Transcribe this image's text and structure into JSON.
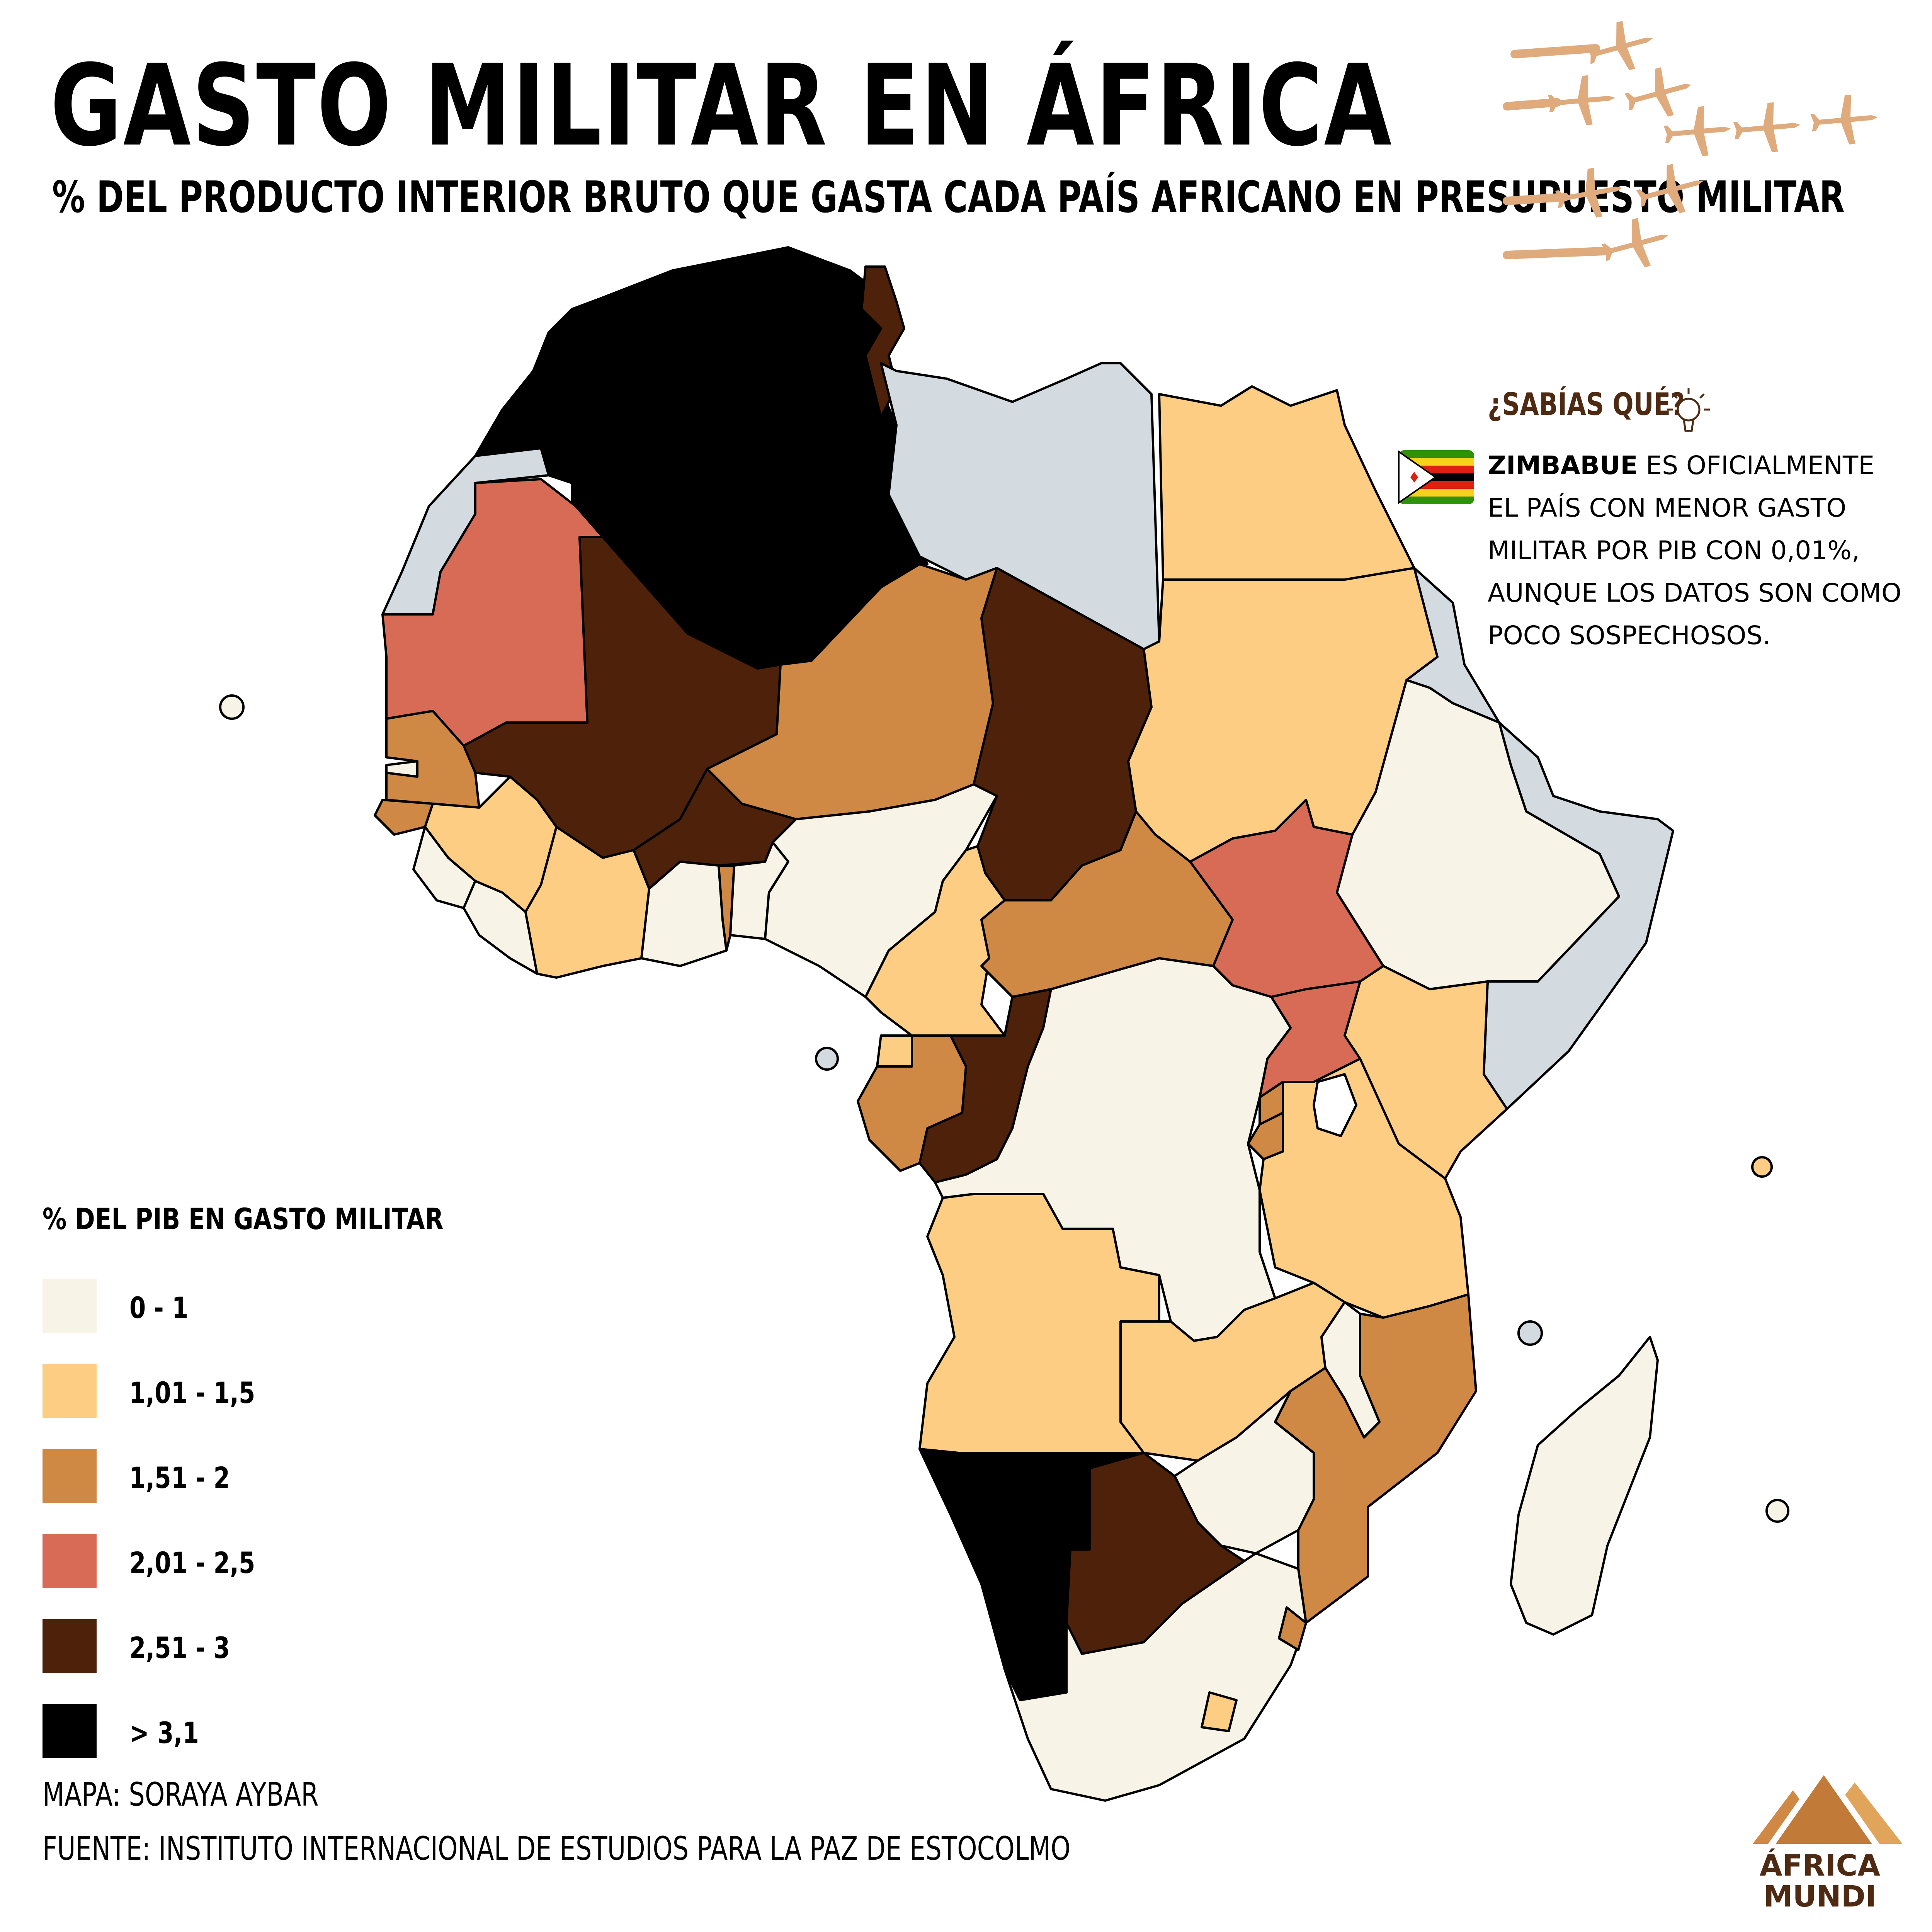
{
  "title": "GASTO MILITAR EN ÁFRICA",
  "subtitle": "% DEL PRODUCTO INTERIOR BRUTO QUE GASTA CADA PAÍS AFRICANO EN PRESUPUESTO MILITAR",
  "sidebar": {
    "heading": "¿SABÍAS QUÉ?",
    "fact_bold": "ZIMBABUE",
    "fact_text": "ES OFICIALMENTE EL PAÍS CON MENOR GASTO MILITAR POR PIB CON 0,01%, AUNQUE LOS DATOS SON COMO POCO SOSPECHOSOS."
  },
  "legend": {
    "title": "% DEL PIB EN GASTO MILITAR",
    "items": [
      {
        "label": "0 - 1",
        "color": "#f7f3e6"
      },
      {
        "label": "1,01 - 1,5",
        "color": "#fdcd84"
      },
      {
        "label": "1,51 - 2",
        "color": "#d08945"
      },
      {
        "label": "2,01 - 2,5",
        "color": "#d86b55"
      },
      {
        "label": "2,51 - 3",
        "color": "#4e210b"
      },
      {
        "label": "> 3,1",
        "color": "#000000"
      }
    ],
    "no_data_color": "#d3dbe0"
  },
  "credits": {
    "map": "MAPA: SORAYA AYBAR",
    "source": "FUENTE: INSTITUTO INTERNACIONAL DE ESTUDIOS PARA LA PAZ DE ESTOCOLMO"
  },
  "logo": {
    "line1": "ÁFRICA",
    "line2": "MUNDI",
    "colors": [
      "#d08945",
      "#e0a55a",
      "#c27a38"
    ]
  },
  "plane_color": "#dfab7d",
  "regions": [
    {
      "name": "Marruecos",
      "cls": 5
    },
    {
      "name": "Argelia",
      "cls": 5
    },
    {
      "name": "Túnez",
      "cls": 4
    },
    {
      "name": "Libia",
      "cls": 6
    },
    {
      "name": "Egipto",
      "cls": 1
    },
    {
      "name": "Sahara Occidental",
      "cls": 6
    },
    {
      "name": "Mauritania",
      "cls": 3
    },
    {
      "name": "Malí",
      "cls": 4
    },
    {
      "name": "Níger",
      "cls": 2
    },
    {
      "name": "Chad",
      "cls": 4
    },
    {
      "name": "Sudán",
      "cls": 1
    },
    {
      "name": "Eritrea",
      "cls": 6
    },
    {
      "name": "Senegal",
      "cls": 2
    },
    {
      "name": "Gambia",
      "cls": 0
    },
    {
      "name": "Guinea-Bisáu",
      "cls": 2
    },
    {
      "name": "Guinea",
      "cls": 1
    },
    {
      "name": "Sierra Leona",
      "cls": 0
    },
    {
      "name": "Liberia",
      "cls": 0
    },
    {
      "name": "Costa de Marfil",
      "cls": 1
    },
    {
      "name": "Burkina Faso",
      "cls": 4
    },
    {
      "name": "Ghana",
      "cls": 0
    },
    {
      "name": "Togo",
      "cls": 2
    },
    {
      "name": "Benín",
      "cls": 0
    },
    {
      "name": "Nigeria",
      "cls": 0
    },
    {
      "name": "Camerún",
      "cls": 1
    },
    {
      "name": "República Centroafricana",
      "cls": 2
    },
    {
      "name": "Sudán del Sur",
      "cls": 3
    },
    {
      "name": "Etiopía",
      "cls": 0
    },
    {
      "name": "Somalia",
      "cls": 6
    },
    {
      "name": "Kenia",
      "cls": 1
    },
    {
      "name": "Uganda",
      "cls": 3
    },
    {
      "name": "Guinea Ecuatorial",
      "cls": 1
    },
    {
      "name": "Gabón",
      "cls": 2
    },
    {
      "name": "República del Congo",
      "cls": 4
    },
    {
      "name": "República Democrática del Congo",
      "cls": 0
    },
    {
      "name": "Ruanda",
      "cls": 2
    },
    {
      "name": "Burundi",
      "cls": 2
    },
    {
      "name": "Tanzania",
      "cls": 1
    },
    {
      "name": "Angola",
      "cls": 1
    },
    {
      "name": "Zambia",
      "cls": 1
    },
    {
      "name": "Malaui",
      "cls": 0
    },
    {
      "name": "Mozambique",
      "cls": 2
    },
    {
      "name": "Zimbabue",
      "cls": 0
    },
    {
      "name": "Namibia",
      "cls": 5
    },
    {
      "name": "Botsuana",
      "cls": 4
    },
    {
      "name": "Sudáfrica",
      "cls": 0
    },
    {
      "name": "Esuatini",
      "cls": 2
    },
    {
      "name": "Lesoto",
      "cls": 1
    },
    {
      "name": "Madagascar",
      "cls": 0
    },
    {
      "name": "Cabo Verde",
      "cls": 0
    },
    {
      "name": "Santo Tomé y Príncipe",
      "cls": 6
    },
    {
      "name": "Seychelles",
      "cls": 1
    },
    {
      "name": "Comoras",
      "cls": 6
    },
    {
      "name": "Mauricio",
      "cls": 0
    }
  ]
}
